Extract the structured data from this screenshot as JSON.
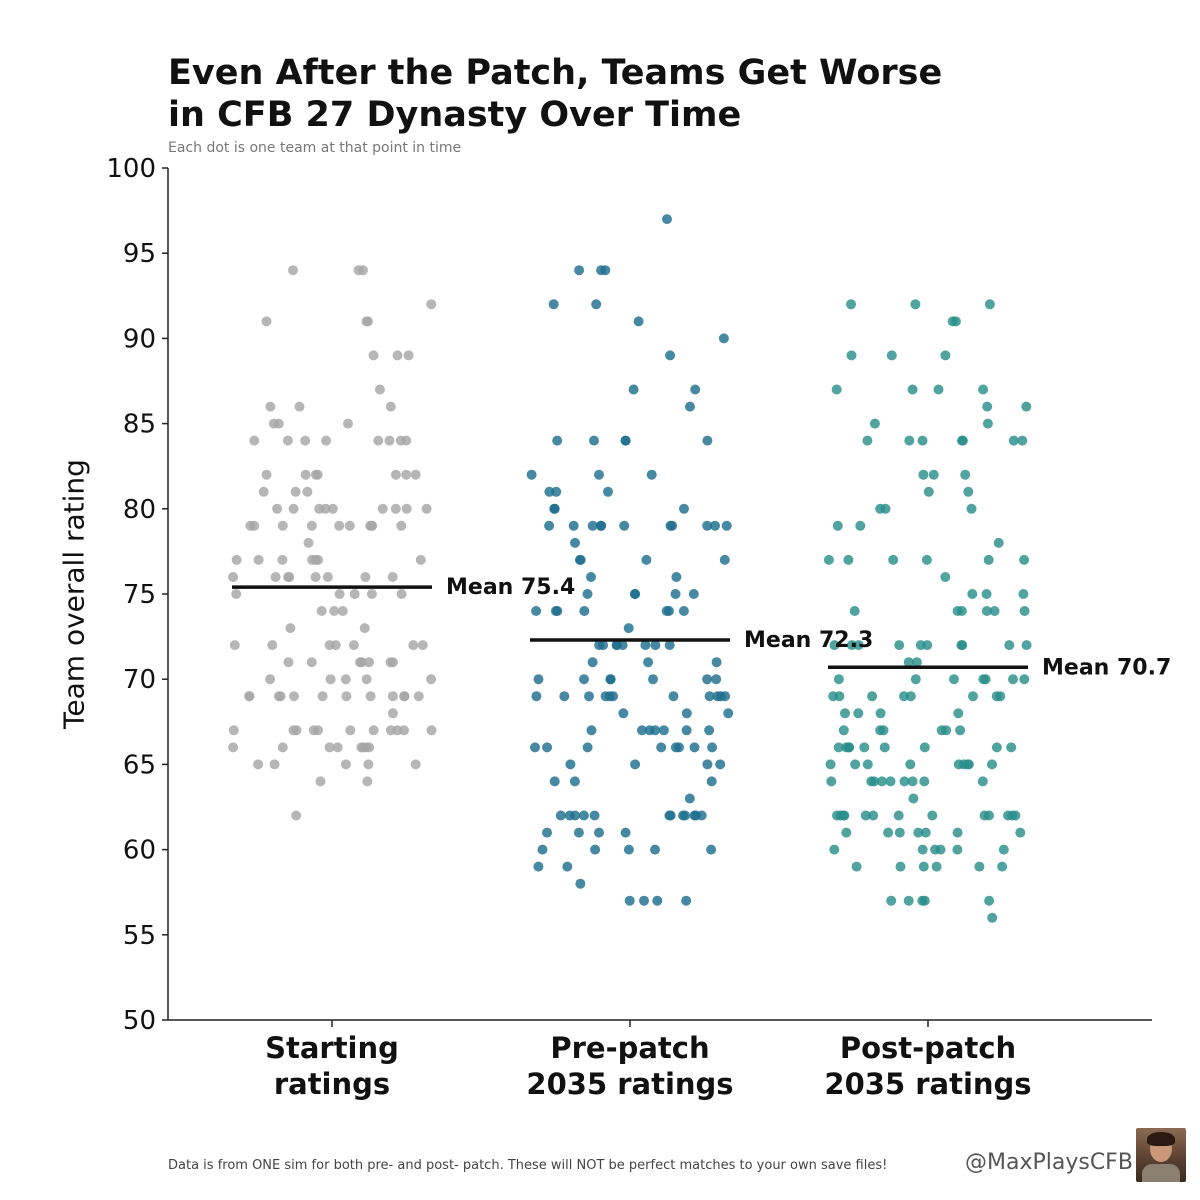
{
  "title_line1": "Even After the Patch, Teams Get Worse",
  "title_line2": "in CFB 27 Dynasty Over Time",
  "subtitle": "Each dot is one team at that point in time",
  "footnote": "Data is from ONE sim for both pre- and post- patch. These will NOT be perfect matches to your own save files!",
  "handle": "@MaxPlaysCFB",
  "colors": {
    "starting": "#a6a6a6",
    "pre_patch": "#1f6f8f",
    "post_patch": "#2a8f8a",
    "mean_line": "#111111"
  },
  "chart_data": {
    "type": "scatter",
    "subtype": "strip-plot",
    "title": "Even After the Patch, Teams Get Worse in CFB 27 Dynasty Over Time",
    "subtitle": "Each dot is one team at that point in time",
    "ylabel": "Team overall rating",
    "xlabel": "",
    "ylim": [
      50,
      100
    ],
    "yticks": [
      "50",
      "55",
      "60",
      "65",
      "70",
      "75",
      "80",
      "85",
      "90",
      "95",
      "100"
    ],
    "grid": false,
    "categories": [
      "Starting ratings",
      "Pre-patch 2035 ratings",
      "Post-patch 2035 ratings"
    ],
    "category_label_lines": [
      [
        "Starting",
        "ratings"
      ],
      [
        "Pre-patch",
        "2035 ratings"
      ],
      [
        "Post-patch",
        "2035 ratings"
      ]
    ],
    "series": [
      {
        "color": "#a6a6a6",
        "mean": 75.4,
        "mean_label": "Mean 75.4",
        "values": [
          94,
          94,
          94,
          92,
          91,
          91,
          91,
          89,
          89,
          89,
          87,
          86,
          86,
          86,
          85,
          85,
          85,
          84,
          84,
          84,
          84,
          84,
          84,
          84,
          84,
          82,
          82,
          82,
          82,
          82,
          82,
          82,
          81,
          81,
          81,
          80,
          80,
          80,
          80,
          80,
          80,
          80,
          80,
          80,
          79,
          79,
          79,
          79,
          79,
          79,
          79,
          79,
          79,
          79,
          78,
          77,
          77,
          77,
          77,
          77,
          77,
          77,
          76,
          76,
          76,
          76,
          76,
          76,
          76,
          76,
          75,
          75,
          75,
          75,
          75,
          74,
          74,
          74,
          73,
          73,
          72,
          72,
          72,
          72,
          72,
          72,
          72,
          71,
          71,
          71,
          71,
          71,
          71,
          71,
          70,
          70,
          70,
          70,
          70,
          69,
          69,
          69,
          69,
          69,
          69,
          69,
          69,
          69,
          69,
          69,
          69,
          68,
          67,
          67,
          67,
          67,
          67,
          67,
          67,
          67,
          67,
          67,
          67,
          66,
          66,
          66,
          66,
          66,
          66,
          66,
          66,
          65,
          65,
          65,
          65,
          65,
          64,
          64,
          62
        ]
      },
      {
        "color": "#1f6f8f",
        "mean": 72.3,
        "mean_label": "Mean 72.3",
        "values": [
          97,
          94,
          94,
          94,
          92,
          92,
          91,
          90,
          89,
          87,
          87,
          86,
          84,
          84,
          84,
          84,
          84,
          82,
          82,
          82,
          81,
          81,
          81,
          80,
          80,
          80,
          79,
          79,
          79,
          79,
          79,
          79,
          79,
          79,
          79,
          79,
          79,
          78,
          77,
          77,
          77,
          77,
          76,
          76,
          75,
          75,
          75,
          75,
          75,
          74,
          74,
          74,
          74,
          74,
          74,
          74,
          73,
          72,
          72,
          72,
          72,
          72,
          72,
          72,
          72,
          71,
          71,
          71,
          70,
          70,
          70,
          70,
          70,
          70,
          70,
          69,
          69,
          69,
          69,
          69,
          69,
          69,
          69,
          69,
          69,
          69,
          68,
          68,
          68,
          67,
          67,
          67,
          67,
          67,
          67,
          67,
          66,
          66,
          66,
          66,
          66,
          66,
          66,
          66,
          65,
          65,
          65,
          65,
          64,
          64,
          64,
          63,
          62,
          62,
          62,
          62,
          62,
          62,
          62,
          62,
          62,
          62,
          62,
          62,
          61,
          61,
          61,
          61,
          60,
          60,
          60,
          60,
          60,
          59,
          59,
          58,
          57,
          57,
          57,
          57
        ]
      },
      {
        "color": "#2a8f8a",
        "mean": 70.7,
        "mean_label": "Mean 70.7",
        "values": [
          92,
          92,
          92,
          91,
          91,
          89,
          89,
          89,
          87,
          87,
          87,
          87,
          86,
          86,
          85,
          85,
          84,
          84,
          84,
          84,
          84,
          84,
          84,
          82,
          82,
          82,
          81,
          81,
          80,
          80,
          80,
          79,
          79,
          78,
          77,
          77,
          77,
          77,
          77,
          77,
          76,
          75,
          75,
          75,
          74,
          74,
          74,
          74,
          74,
          74,
          72,
          72,
          72,
          72,
          72,
          72,
          72,
          72,
          72,
          72,
          71,
          71,
          70,
          70,
          70,
          70,
          70,
          70,
          70,
          69,
          69,
          69,
          69,
          69,
          69,
          69,
          69,
          68,
          68,
          68,
          68,
          67,
          67,
          67,
          67,
          67,
          67,
          66,
          66,
          66,
          66,
          66,
          66,
          66,
          66,
          66,
          65,
          65,
          65,
          65,
          65,
          65,
          65,
          65,
          65,
          64,
          64,
          64,
          64,
          64,
          64,
          64,
          64,
          64,
          63,
          62,
          62,
          62,
          62,
          62,
          62,
          62,
          62,
          62,
          62,
          62,
          62,
          62,
          61,
          61,
          61,
          61,
          61,
          61,
          61,
          60,
          60,
          60,
          60,
          60,
          60,
          59,
          59,
          59,
          59,
          59,
          59,
          57,
          57,
          57,
          57,
          57,
          56
        ]
      }
    ]
  }
}
